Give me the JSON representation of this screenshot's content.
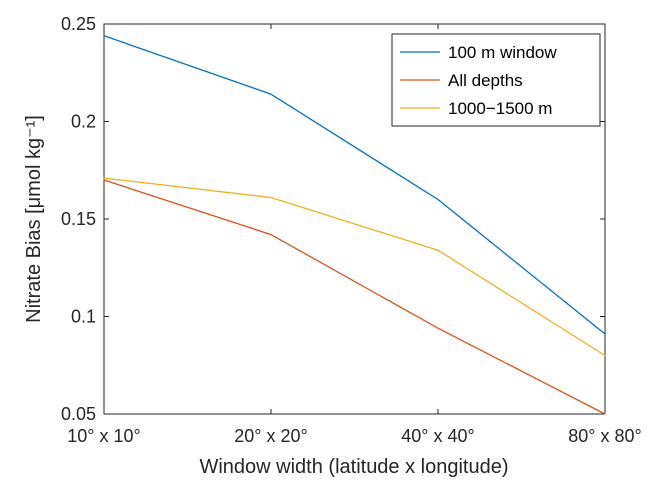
{
  "chart_data": {
    "type": "line",
    "categories": [
      "10° x 10°",
      "20° x 20°",
      "40° x 40°",
      "80° x 80°"
    ],
    "series": [
      {
        "name": "100 m window",
        "color": "#0072BD",
        "values": [
          0.244,
          0.214,
          0.16,
          0.091
        ]
      },
      {
        "name": "All depths",
        "color": "#D95319",
        "values": [
          0.17,
          0.142,
          0.094,
          0.05
        ]
      },
      {
        "name": "1000−1500 m",
        "color": "#EDB120",
        "values": [
          0.171,
          0.161,
          0.134,
          0.08
        ]
      }
    ],
    "xlabel": "Window width (latitude x longitude)",
    "ylabel": "Nitrate Bias [μmol kg⁻¹]",
    "ylim": [
      0.05,
      0.25
    ],
    "yticks": [
      "0.05",
      "0.1",
      "0.15",
      "0.2",
      "0.25"
    ],
    "grid": false,
    "legend": "top-right"
  }
}
